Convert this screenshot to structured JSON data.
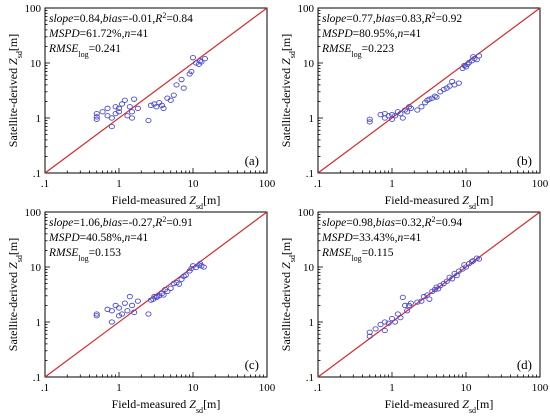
{
  "chart_data": [
    {
      "type": "scatter",
      "panel_label": "(a)",
      "stats": {
        "line1": [
          {
            "t": "slope",
            "i": true
          },
          {
            "t": "=0.84,",
            "i": false
          },
          {
            "t": "bias",
            "i": true
          },
          {
            "t": "=-0.01,",
            "i": false
          },
          {
            "t": "R",
            "i": true
          },
          {
            "t": "2",
            "i": false,
            "sup": true
          },
          {
            "t": "=0.84",
            "i": false
          }
        ],
        "line2": [
          {
            "t": "MSPD",
            "i": true
          },
          {
            "t": "=61.72%,",
            "i": false
          },
          {
            "t": "n",
            "i": true
          },
          {
            "t": "=41",
            "i": false
          }
        ],
        "line3": [
          {
            "t": "RMSE",
            "i": true
          },
          {
            "t": "log",
            "i": false,
            "sub": true
          },
          {
            "t": "=0.241",
            "i": false
          }
        ]
      },
      "xlabel": {
        "main": "Field-measured ",
        "var": "Z",
        "sub": "sd",
        "unit": "[m]"
      },
      "ylabel": {
        "main": "Satellite-derived ",
        "var": "Z",
        "sub": "sd",
        "unit": "[m]"
      },
      "xticks": [
        ".1",
        "1",
        "10",
        "100"
      ],
      "yticks": [
        ".1",
        "1",
        "10",
        "100"
      ],
      "xlim": [
        0.1,
        100
      ],
      "ylim": [
        0.1,
        100
      ],
      "log": true,
      "reference_line": "1:1",
      "points": [
        [
          0.5,
          1.2
        ],
        [
          0.5,
          1.05
        ],
        [
          0.5,
          0.95
        ],
        [
          0.6,
          1.3
        ],
        [
          0.7,
          1.1
        ],
        [
          0.7,
          1.5
        ],
        [
          0.8,
          0.7
        ],
        [
          0.8,
          1.0
        ],
        [
          0.9,
          1.2
        ],
        [
          0.9,
          1.6
        ],
        [
          1.0,
          1.5
        ],
        [
          1.0,
          1.3
        ],
        [
          1.1,
          1.8
        ],
        [
          1.2,
          2.1
        ],
        [
          1.3,
          1.1
        ],
        [
          1.4,
          1.6
        ],
        [
          1.5,
          1.3
        ],
        [
          1.5,
          1.0
        ],
        [
          1.6,
          2.2
        ],
        [
          1.8,
          1.5
        ],
        [
          2.5,
          0.9
        ],
        [
          2.7,
          1.7
        ],
        [
          3.0,
          1.8
        ],
        [
          3.2,
          1.6
        ],
        [
          3.5,
          1.9
        ],
        [
          3.8,
          1.7
        ],
        [
          4.0,
          1.5
        ],
        [
          4.5,
          2.3
        ],
        [
          5.0,
          2.1
        ],
        [
          5.5,
          2.6
        ],
        [
          6.0,
          4.0
        ],
        [
          7.0,
          5.0
        ],
        [
          7.5,
          3.5
        ],
        [
          9.0,
          6.3
        ],
        [
          9.5,
          7.0
        ],
        [
          10.0,
          12.5
        ],
        [
          11.0,
          10.0
        ],
        [
          12.0,
          9.5
        ],
        [
          12.5,
          11.0
        ],
        [
          13.0,
          10.5
        ],
        [
          14.5,
          12.0
        ]
      ]
    },
    {
      "type": "scatter",
      "panel_label": "(b)",
      "stats": {
        "line1": [
          {
            "t": "slope",
            "i": true
          },
          {
            "t": "=0.77,",
            "i": false
          },
          {
            "t": "bias",
            "i": true
          },
          {
            "t": "=0.83,",
            "i": false
          },
          {
            "t": "R",
            "i": true
          },
          {
            "t": "2",
            "i": false,
            "sup": true
          },
          {
            "t": "=0.92",
            "i": false
          }
        ],
        "line2": [
          {
            "t": "MSPD",
            "i": true
          },
          {
            "t": "=80.95%,",
            "i": false
          },
          {
            "t": "n",
            "i": true
          },
          {
            "t": "=41",
            "i": false
          }
        ],
        "line3": [
          {
            "t": "RMSE",
            "i": true
          },
          {
            "t": "log",
            "i": false,
            "sub": true
          },
          {
            "t": "=0.223",
            "i": false
          }
        ]
      },
      "xlabel": {
        "main": "Field-measured ",
        "var": "Z",
        "sub": "sd",
        "unit": "[m]"
      },
      "ylabel": {
        "main": "Satellite-derived ",
        "var": "Z",
        "sub": "sd",
        "unit": "[m]"
      },
      "xticks": [
        ".1",
        "1",
        "10",
        "100"
      ],
      "yticks": [
        ".1",
        "1",
        "10",
        "100"
      ],
      "xlim": [
        0.1,
        100
      ],
      "ylim": [
        0.1,
        100
      ],
      "log": true,
      "reference_line": "1:1",
      "points": [
        [
          0.5,
          0.95
        ],
        [
          0.5,
          0.85
        ],
        [
          0.7,
          1.15
        ],
        [
          0.8,
          1.0
        ],
        [
          0.8,
          1.2
        ],
        [
          0.9,
          1.1
        ],
        [
          1.0,
          0.95
        ],
        [
          1.0,
          1.15
        ],
        [
          1.1,
          1.1
        ],
        [
          1.2,
          1.3
        ],
        [
          1.3,
          1.2
        ],
        [
          1.4,
          1.0
        ],
        [
          1.5,
          1.4
        ],
        [
          1.7,
          1.6
        ],
        [
          1.8,
          1.5
        ],
        [
          2.5,
          1.6
        ],
        [
          2.8,
          1.9
        ],
        [
          3.0,
          2.1
        ],
        [
          3.2,
          2.2
        ],
        [
          3.5,
          2.3
        ],
        [
          3.8,
          2.5
        ],
        [
          4.0,
          2.4
        ],
        [
          4.5,
          3.0
        ],
        [
          5.0,
          3.3
        ],
        [
          5.5,
          3.5
        ],
        [
          6.0,
          3.8
        ],
        [
          7.0,
          4.0
        ],
        [
          8.0,
          4.3
        ],
        [
          9.0,
          8.0
        ],
        [
          9.5,
          9.0
        ],
        [
          10.0,
          8.5
        ],
        [
          10.5,
          9.5
        ],
        [
          11.0,
          10.2
        ],
        [
          12.0,
          11.0
        ],
        [
          12.5,
          13.0
        ],
        [
          13.0,
          12.0
        ],
        [
          14.0,
          11.5
        ],
        [
          15.0,
          13.5
        ],
        [
          1.6,
          1.3
        ],
        [
          2.2,
          1.4
        ],
        [
          6.5,
          4.6
        ]
      ]
    },
    {
      "type": "scatter",
      "panel_label": "(c)",
      "stats": {
        "line1": [
          {
            "t": "slope",
            "i": true
          },
          {
            "t": "=1.06,",
            "i": false
          },
          {
            "t": "bias",
            "i": true
          },
          {
            "t": "=-0.27,",
            "i": false
          },
          {
            "t": "R",
            "i": true
          },
          {
            "t": "2",
            "i": false,
            "sup": true
          },
          {
            "t": "=0.91",
            "i": false
          }
        ],
        "line2": [
          {
            "t": "MSPD",
            "i": true
          },
          {
            "t": "=40.58%,",
            "i": false
          },
          {
            "t": "n",
            "i": true
          },
          {
            "t": "=41",
            "i": false
          }
        ],
        "line3": [
          {
            "t": "RMSE",
            "i": true
          },
          {
            "t": "log",
            "i": false,
            "sub": true
          },
          {
            "t": "=0.153",
            "i": false
          }
        ]
      },
      "xlabel": {
        "main": "Field-measured ",
        "var": "Z",
        "sub": "sd",
        "unit": "[m]"
      },
      "ylabel": {
        "main": "Satellite-derived ",
        "var": "Z",
        "sub": "sd",
        "unit": "[m]"
      },
      "xticks": [
        ".1",
        "1",
        "10",
        "100"
      ],
      "yticks": [
        ".1",
        "1",
        "10",
        "100"
      ],
      "xlim": [
        0.1,
        100
      ],
      "ylim": [
        0.1,
        100
      ],
      "log": true,
      "reference_line": "1:1",
      "points": [
        [
          0.5,
          1.4
        ],
        [
          0.5,
          1.3
        ],
        [
          0.7,
          1.7
        ],
        [
          0.8,
          1.0
        ],
        [
          0.8,
          1.6
        ],
        [
          0.9,
          2.0
        ],
        [
          1.0,
          1.3
        ],
        [
          1.0,
          1.8
        ],
        [
          1.2,
          2.2
        ],
        [
          1.3,
          1.6
        ],
        [
          1.4,
          2.9
        ],
        [
          1.5,
          2.0
        ],
        [
          1.6,
          1.5
        ],
        [
          1.8,
          2.4
        ],
        [
          2.5,
          1.4
        ],
        [
          2.7,
          2.5
        ],
        [
          3.0,
          2.9
        ],
        [
          3.2,
          2.8
        ],
        [
          3.5,
          3.0
        ],
        [
          3.8,
          3.3
        ],
        [
          4.0,
          3.1
        ],
        [
          4.5,
          3.6
        ],
        [
          5.0,
          4.1
        ],
        [
          5.5,
          5.0
        ],
        [
          6.0,
          5.2
        ],
        [
          7.0,
          6.0
        ],
        [
          7.5,
          6.8
        ],
        [
          8.0,
          7.1
        ],
        [
          9.0,
          8.5
        ],
        [
          9.5,
          9.4
        ],
        [
          10.0,
          10.5
        ],
        [
          11.0,
          9.8
        ],
        [
          12.0,
          10.8
        ],
        [
          12.5,
          11.5
        ],
        [
          13.0,
          10.5
        ],
        [
          14.0,
          10.0
        ],
        [
          3.3,
          2.9
        ],
        [
          4.2,
          3.9
        ],
        [
          6.5,
          4.9
        ],
        [
          2.9,
          2.6
        ],
        [
          1.1,
          1.4
        ]
      ]
    },
    {
      "type": "scatter",
      "panel_label": "(d)",
      "stats": {
        "line1": [
          {
            "t": "slope",
            "i": true
          },
          {
            "t": "=0.98,",
            "i": false
          },
          {
            "t": "bias",
            "i": true
          },
          {
            "t": "=0.32,",
            "i": false
          },
          {
            "t": "R",
            "i": true
          },
          {
            "t": "2",
            "i": false,
            "sup": true
          },
          {
            "t": "=0.94",
            "i": false
          }
        ],
        "line2": [
          {
            "t": "MSPD",
            "i": true
          },
          {
            "t": "=33.43%,",
            "i": false
          },
          {
            "t": "n",
            "i": true
          },
          {
            "t": "=41",
            "i": false
          }
        ],
        "line3": [
          {
            "t": "RMSE",
            "i": true
          },
          {
            "t": "log",
            "i": false,
            "sub": true
          },
          {
            "t": "=0.115",
            "i": false
          }
        ]
      },
      "xlabel": {
        "main": "Field-measured ",
        "var": "Z",
        "sub": "sd",
        "unit": "[m]"
      },
      "ylabel": {
        "main": "Satellite-derived ",
        "var": "Z",
        "sub": "sd",
        "unit": "[m]"
      },
      "xticks": [
        ".1",
        "1",
        "10",
        "100"
      ],
      "yticks": [
        ".1",
        "1",
        "10",
        "100"
      ],
      "xlim": [
        0.1,
        100
      ],
      "ylim": [
        0.1,
        100
      ],
      "log": true,
      "reference_line": "1:1",
      "points": [
        [
          0.5,
          0.55
        ],
        [
          0.5,
          0.65
        ],
        [
          0.6,
          0.75
        ],
        [
          0.7,
          0.9
        ],
        [
          0.8,
          0.7
        ],
        [
          0.8,
          1.0
        ],
        [
          0.9,
          0.95
        ],
        [
          1.0,
          1.15
        ],
        [
          1.1,
          1.0
        ],
        [
          1.2,
          1.4
        ],
        [
          1.3,
          1.2
        ],
        [
          1.4,
          2.8
        ],
        [
          1.5,
          2.0
        ],
        [
          1.6,
          1.6
        ],
        [
          1.8,
          2.2
        ],
        [
          2.5,
          2.4
        ],
        [
          2.7,
          2.9
        ],
        [
          3.0,
          3.1
        ],
        [
          3.2,
          2.6
        ],
        [
          3.5,
          3.6
        ],
        [
          3.8,
          3.9
        ],
        [
          4.0,
          4.3
        ],
        [
          4.5,
          4.6
        ],
        [
          5.0,
          5.0
        ],
        [
          5.5,
          5.5
        ],
        [
          6.0,
          6.5
        ],
        [
          7.0,
          7.6
        ],
        [
          7.5,
          7.0
        ],
        [
          8.0,
          8.4
        ],
        [
          9.0,
          9.2
        ],
        [
          9.5,
          11.0
        ],
        [
          10.0,
          10.0
        ],
        [
          11.0,
          11.5
        ],
        [
          12.0,
          12.5
        ],
        [
          12.5,
          13.0
        ],
        [
          14.0,
          14.5
        ],
        [
          15.0,
          14.0
        ],
        [
          1.7,
          2.0
        ],
        [
          2.2,
          2.3
        ],
        [
          4.2,
          4.0
        ],
        [
          6.5,
          6.1
        ]
      ]
    }
  ]
}
